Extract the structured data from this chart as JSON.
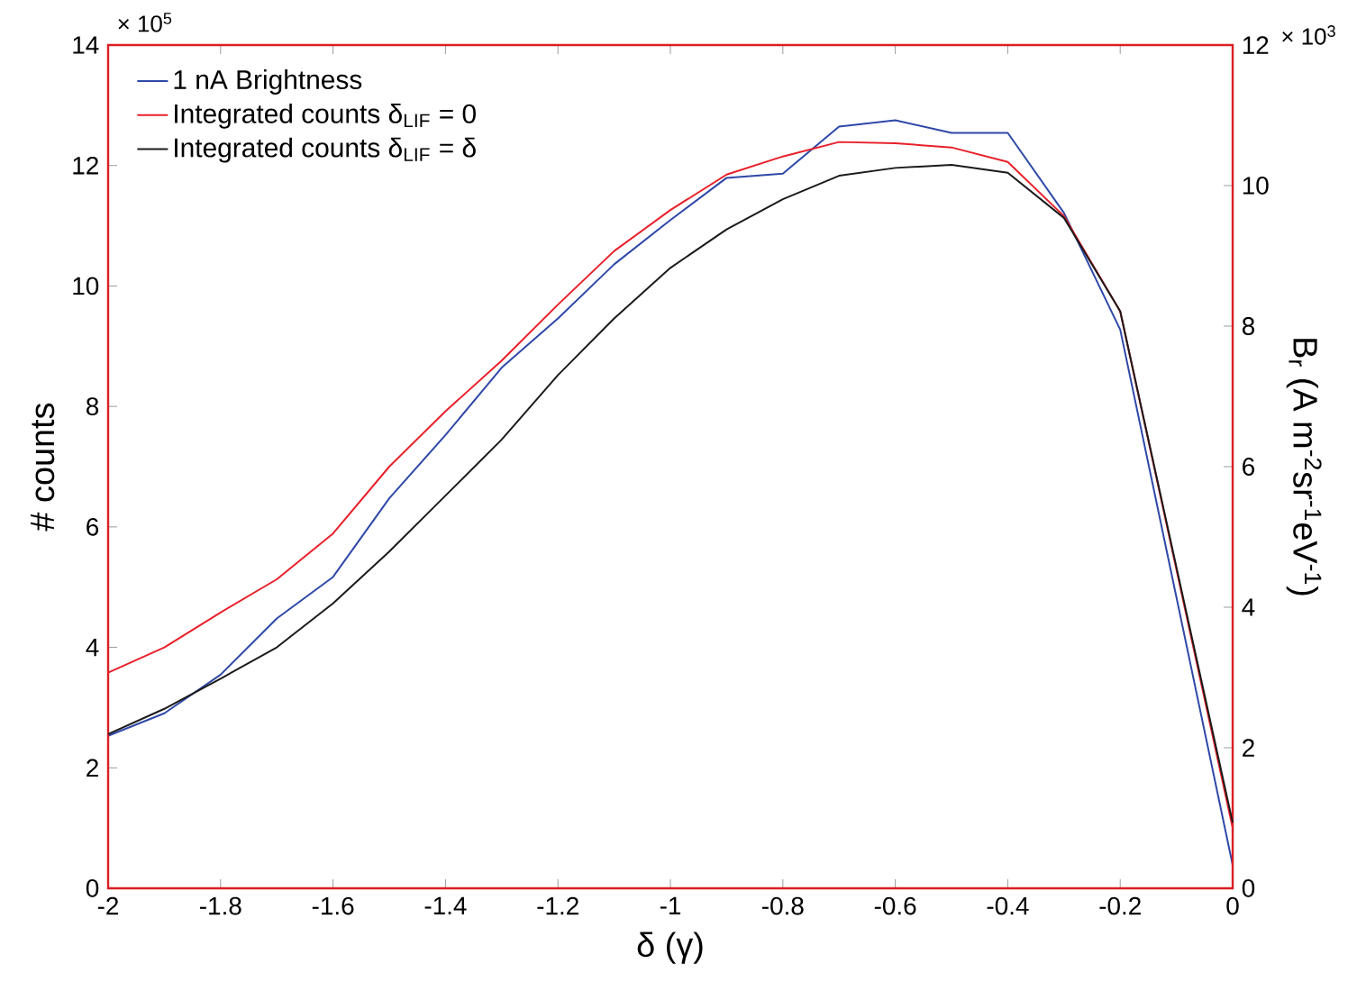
{
  "chart_data": {
    "type": "line",
    "xlabel": "δ (γ)",
    "ylabel": "# counts",
    "y2label": "B$_{r}$ (A m$^{-2}$sr$^{-1}$eV$^{-1}$)",
    "annotations": [
      "× 10$^{5}$",
      "× 10$^{3}$"
    ],
    "x": [
      -2,
      -1.9,
      -1.8,
      -1.7,
      -1.6,
      -1.5,
      -1.4,
      -1.3,
      -1.2,
      -1.1,
      -1.0,
      -0.9,
      -0.8,
      -0.7,
      -0.6,
      -0.5,
      -0.4,
      -0.3,
      -0.2,
      -0.1,
      0
    ],
    "series": [
      {
        "name": "1 nA Brightness",
        "color": "#2e48a8",
        "axis": "y2",
        "values": [
          2.17,
          2.49,
          3.04,
          3.84,
          4.43,
          5.55,
          6.45,
          7.41,
          8.11,
          8.88,
          9.51,
          10.11,
          10.17,
          10.84,
          10.93,
          10.75,
          10.75,
          9.61,
          7.95,
          4.14,
          0.33
        ]
      },
      {
        "name": "Integrated counts δ$_{LIF}$ = 0",
        "color": "#e8202a",
        "values": [
          3.58,
          4.0,
          4.58,
          5.13,
          5.89,
          7.0,
          7.92,
          8.76,
          9.69,
          10.58,
          11.26,
          11.85,
          12.15,
          12.39,
          12.37,
          12.3,
          12.06,
          11.16,
          9.58,
          5.29,
          1.0
        ]
      },
      {
        "name": "Integrated counts δ$_{LIF}$ = δ",
        "color": "#1a1a1a",
        "values": [
          2.56,
          2.98,
          3.48,
          4.0,
          4.73,
          5.59,
          6.52,
          7.45,
          8.52,
          9.46,
          10.3,
          10.94,
          11.44,
          11.83,
          11.96,
          12.01,
          11.88,
          11.13,
          9.58,
          5.33,
          1.09
        ]
      }
    ],
    "xlim": [
      -2,
      0
    ],
    "xticks": [
      -2,
      -1.8,
      -1.6,
      -1.4,
      -1.2,
      -1,
      -0.8,
      -0.6,
      -0.4,
      -0.2,
      0
    ],
    "ylim": [
      0,
      14
    ],
    "yticks": [
      0,
      2,
      4,
      6,
      8,
      10,
      12,
      14
    ],
    "y2lim": [
      0,
      12
    ],
    "y2ticks": [
      0,
      2,
      4,
      6,
      8,
      10,
      12
    ],
    "legend": "top left",
    "marker": "none",
    "line_style": "solid"
  }
}
